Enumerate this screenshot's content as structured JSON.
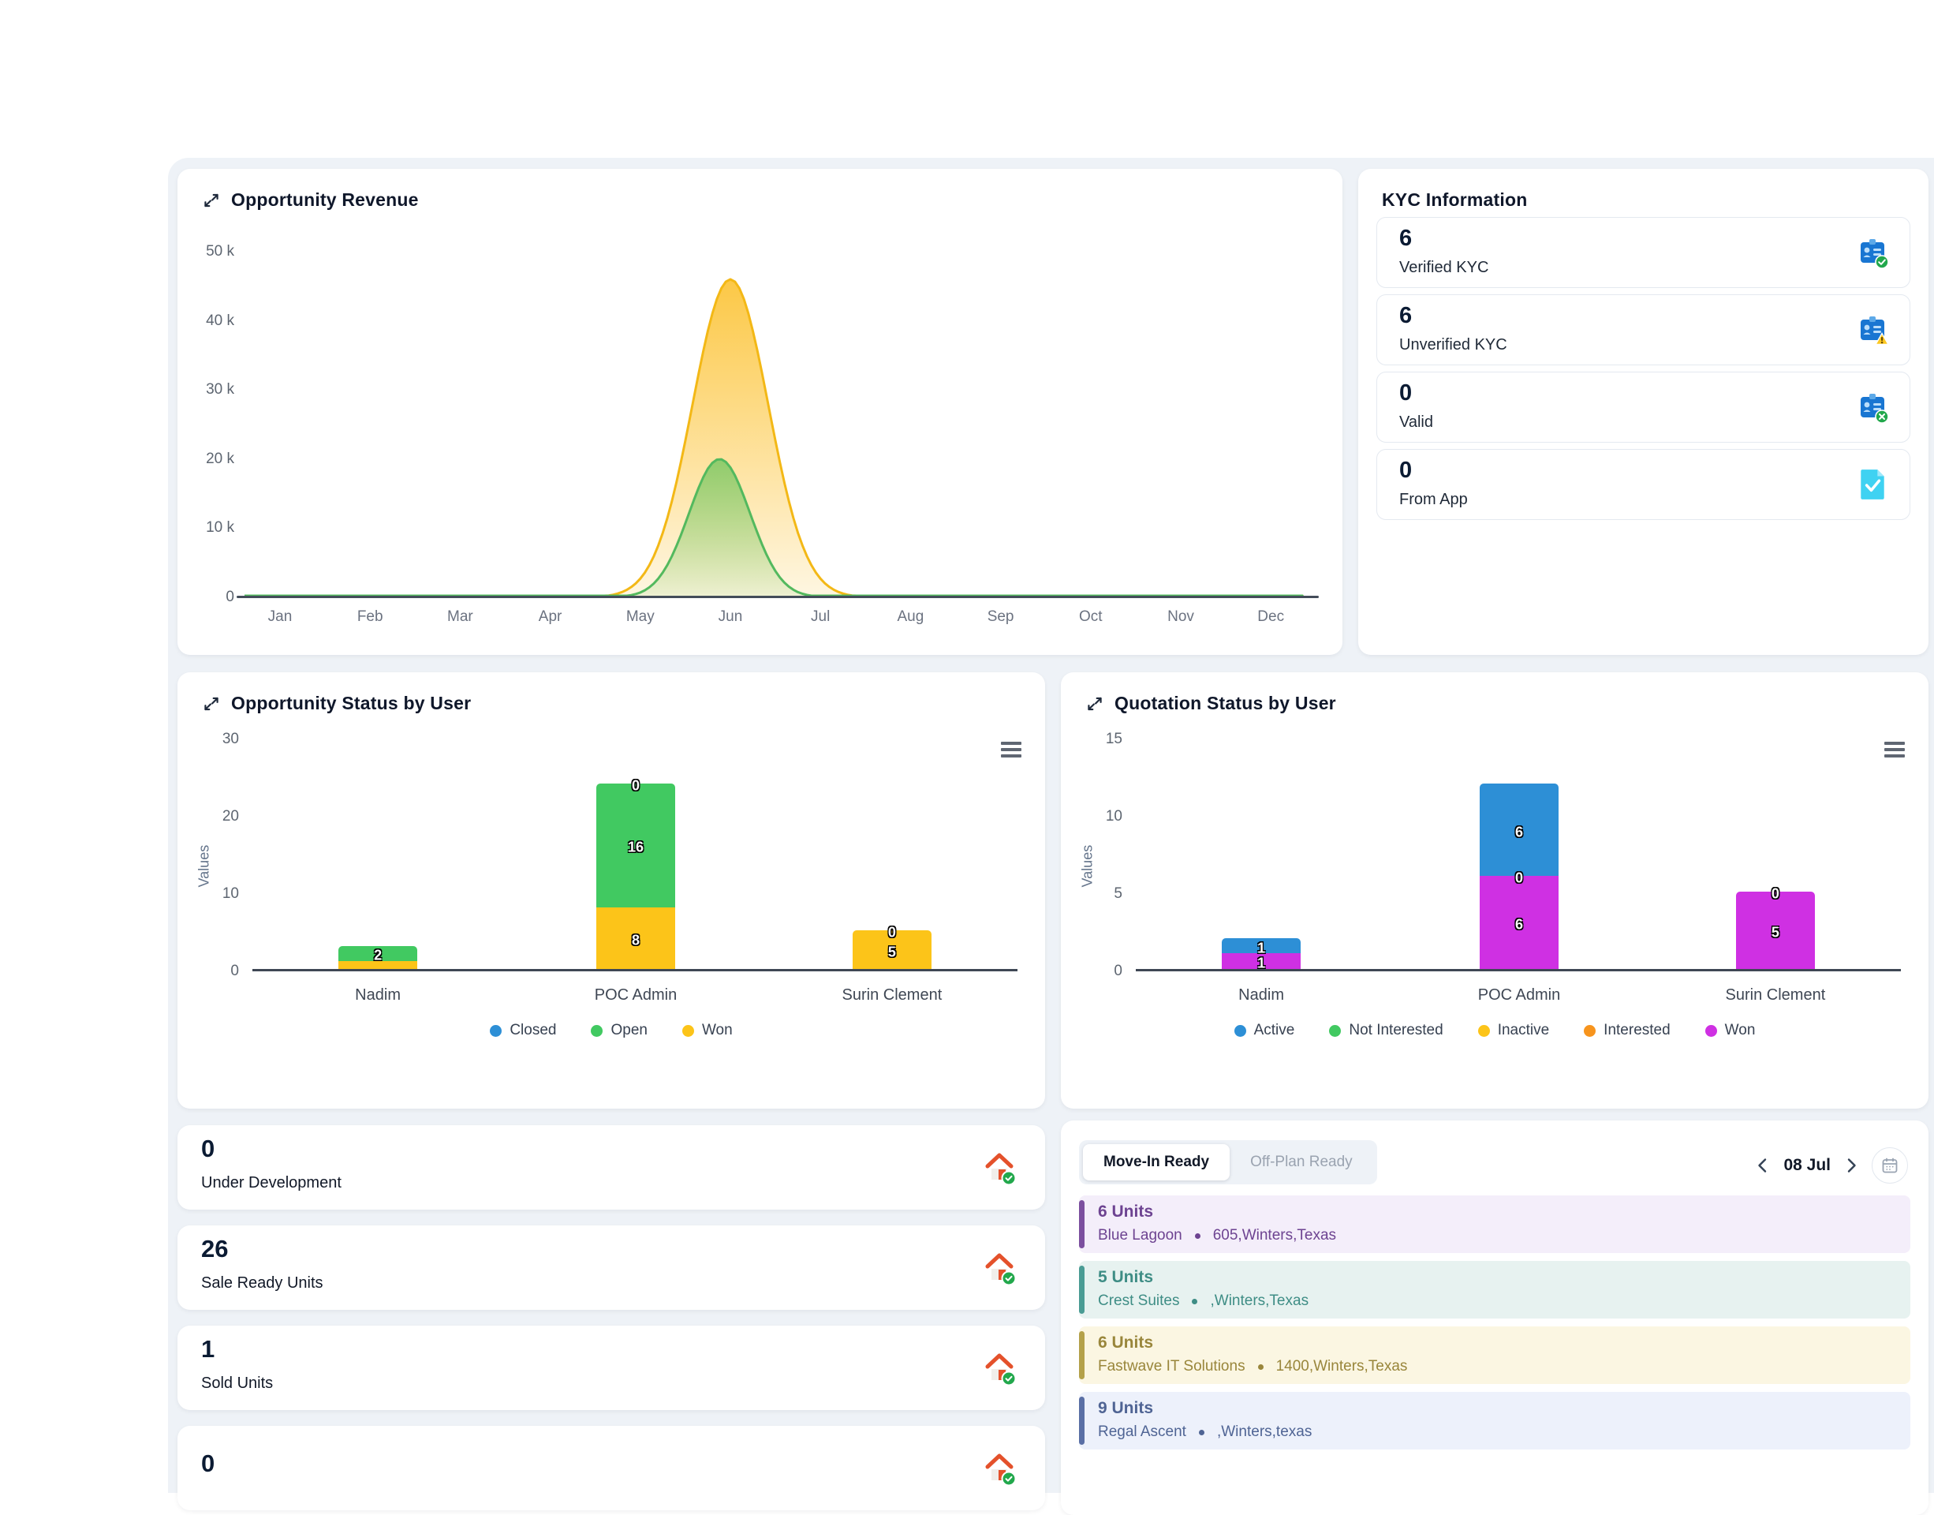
{
  "revenue_card": {
    "title": "Opportunity Revenue"
  },
  "kyc": {
    "title": "KYC Information",
    "cards": [
      {
        "value": "6",
        "label": "Verified KYC",
        "icon": "id-card-check"
      },
      {
        "value": "6",
        "label": "Unverified KYC",
        "icon": "id-card-warning"
      },
      {
        "value": "0",
        "label": "Valid",
        "icon": "id-card-cross"
      },
      {
        "value": "0",
        "label": "From App",
        "icon": "document-check"
      }
    ]
  },
  "stats": [
    {
      "value": "0",
      "label": "Under Development"
    },
    {
      "value": "26",
      "label": "Sale Ready Units"
    },
    {
      "value": "1",
      "label": "Sold Units"
    },
    {
      "value": "0",
      "label": ""
    }
  ],
  "movein": {
    "tabs": [
      {
        "label": "Move-In Ready",
        "active": true
      },
      {
        "label": "Off-Plan Ready",
        "active": false
      }
    ],
    "date_label": "08 Jul",
    "items": [
      {
        "units": "6 Units",
        "name": "Blue Lagoon",
        "address": "605,Winters,Texas",
        "accent": "#7c4f9f",
        "bg": "#f4eefa",
        "text": "#6d4391"
      },
      {
        "units": "5 Units",
        "name": "Crest Suites",
        "address": ",Winters,Texas",
        "accent": "#4a9c94",
        "bg": "#e7f2f0",
        "text": "#3e8d85"
      },
      {
        "units": "6 Units",
        "name": "Fastwave IT Solutions",
        "address": "1400,Winters,Texas",
        "accent": "#b4a14a",
        "bg": "#fbf6e2",
        "text": "#99863b"
      },
      {
        "units": "9 Units",
        "name": "Regal Ascent",
        "address": ",Winters,texas",
        "accent": "#5a6fa5",
        "bg": "#edf1fb",
        "text": "#4f6494"
      }
    ]
  },
  "chart_data": [
    {
      "id": "opportunity_revenue",
      "type": "area",
      "title": "Opportunity Revenue",
      "x": [
        "Jan",
        "Feb",
        "Mar",
        "Apr",
        "May",
        "Jun",
        "Jul",
        "Aug",
        "Sep",
        "Oct",
        "Nov",
        "Dec"
      ],
      "series": [
        {
          "name": "revenue-outer",
          "color": "#f3b816",
          "fill_from": "rgba(252,197,60,0.95)",
          "fill_to": "rgba(252,197,60,0.15)",
          "peak": 46000,
          "center_index": 5.0,
          "sigma": 0.42,
          "values": [
            0,
            0,
            0,
            0,
            0,
            46000,
            0,
            0,
            0,
            0,
            0,
            0
          ]
        },
        {
          "name": "revenue-inner",
          "color": "#53b95e",
          "fill_from": "rgba(124,200,100,0.85)",
          "fill_to": "rgba(124,200,100,0.12)",
          "peak": 20000,
          "center_index": 4.88,
          "sigma": 0.34,
          "values": [
            0,
            0,
            0,
            0,
            0,
            20000,
            0,
            0,
            0,
            0,
            0,
            0
          ]
        }
      ],
      "ylim": [
        0,
        50000
      ],
      "yticks": [
        "50 k",
        "40 k",
        "30 k",
        "20 k",
        "10 k",
        "0"
      ],
      "grid": false,
      "legend": "none",
      "peak_month": "Jun"
    },
    {
      "id": "opportunity_status_by_user",
      "type": "stacked-bar",
      "title": "Opportunity Status by User",
      "ylabel": "Values",
      "categories": [
        "Nadim",
        "POC Admin",
        "Surin Clement"
      ],
      "series": [
        {
          "name": "Closed",
          "color": "#2d8fd6",
          "values": [
            0,
            0,
            0
          ]
        },
        {
          "name": "Open",
          "color": "#41c961",
          "values": [
            2,
            16,
            0
          ]
        },
        {
          "name": "Won",
          "color": "#fcc419",
          "values": [
            1,
            8,
            5
          ]
        }
      ],
      "ylim": [
        0,
        30
      ],
      "yticks": [
        "30",
        "20",
        "10",
        "0"
      ],
      "grid": false,
      "legend": "bottom",
      "bar_labels": [
        [
          {
            "text": "2",
            "at": 2
          }
        ],
        [
          {
            "text": "0",
            "at": 24
          },
          {
            "text": "16",
            "at": 16
          },
          {
            "text": "8",
            "at": 4
          }
        ],
        [
          {
            "text": "0",
            "at": 5
          },
          {
            "text": "5",
            "at": 2.5
          }
        ]
      ]
    },
    {
      "id": "quotation_status_by_user",
      "type": "stacked-bar",
      "title": "Quotation Status by User",
      "ylabel": "Values",
      "categories": [
        "Nadim",
        "POC Admin",
        "Surin Clement"
      ],
      "series": [
        {
          "name": "Active",
          "color": "#2d8fd6",
          "values": [
            1,
            6,
            0
          ]
        },
        {
          "name": "Not Interested",
          "color": "#41c961",
          "values": [
            0,
            0,
            0
          ]
        },
        {
          "name": "Inactive",
          "color": "#fcc419",
          "values": [
            0,
            0,
            0
          ]
        },
        {
          "name": "Interested",
          "color": "#f7941d",
          "values": [
            0,
            0,
            0
          ]
        },
        {
          "name": "Won",
          "color": "#cf30e3",
          "values": [
            1,
            6,
            5
          ]
        }
      ],
      "ylim": [
        0,
        15
      ],
      "yticks": [
        "15",
        "10",
        "5",
        "0"
      ],
      "grid": false,
      "legend": "bottom",
      "bar_labels": [
        [
          {
            "text": "1",
            "at": 1.5
          },
          {
            "text": "1",
            "at": 0.5
          }
        ],
        [
          {
            "text": "6",
            "at": 9
          },
          {
            "text": "0",
            "at": 6
          },
          {
            "text": "6",
            "at": 3
          }
        ],
        [
          {
            "text": "0",
            "at": 5
          },
          {
            "text": "5",
            "at": 2.5
          }
        ]
      ]
    }
  ]
}
